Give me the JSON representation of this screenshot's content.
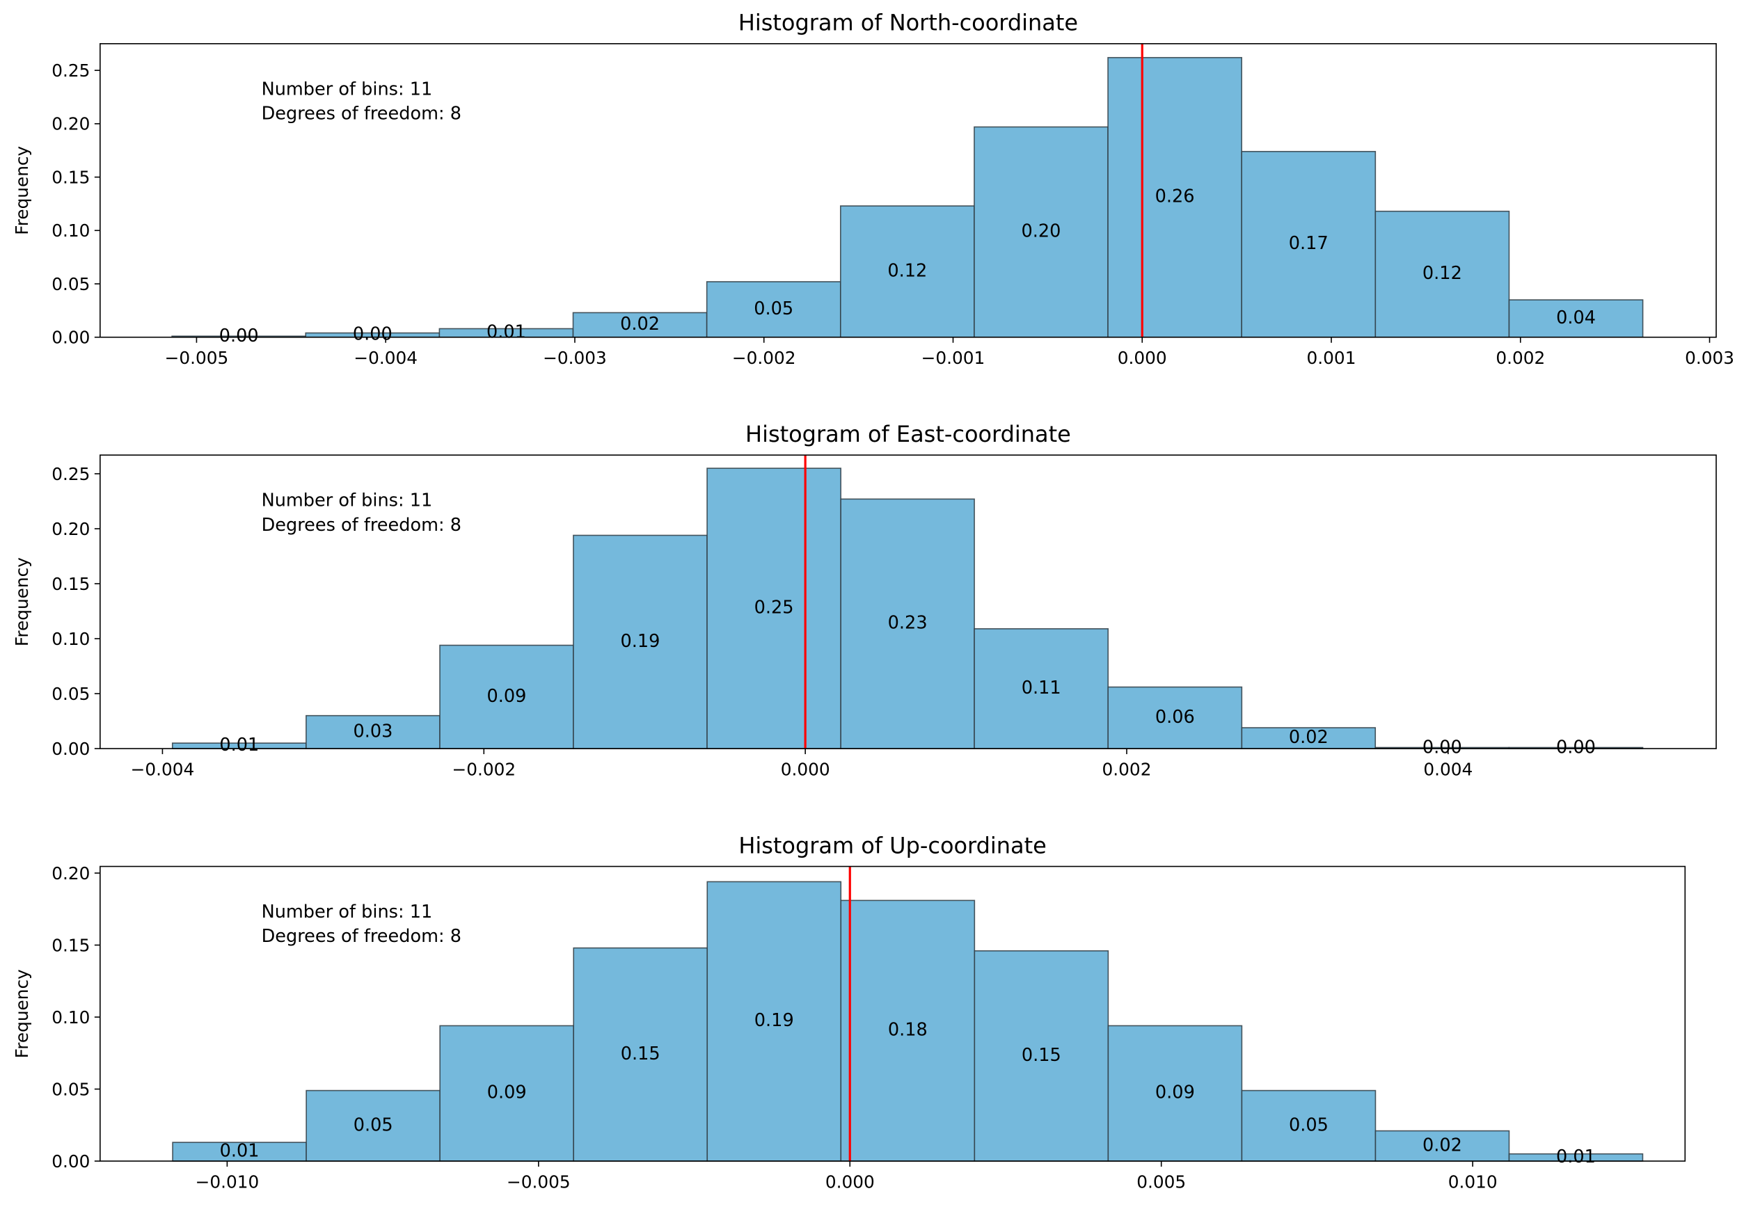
{
  "chart_data": [
    {
      "type": "bar",
      "title": "Histogram of North-coordinate",
      "xlabel": "",
      "ylabel": "Frequency",
      "annotation": [
        "Number of bins: 11",
        "Degrees of freedom: 8"
      ],
      "bin_edges": [
        -0.00513,
        -0.004423,
        -0.003716,
        -0.003009,
        -0.002302,
        -0.001595,
        -0.000888,
        -0.000181,
        0.000526,
        0.001233,
        0.00194,
        0.002647
      ],
      "values": [
        0.001,
        0.004,
        0.008,
        0.023,
        0.052,
        0.123,
        0.197,
        0.262,
        0.174,
        0.118,
        0.035
      ],
      "bar_labels": [
        "0.00",
        "0.00",
        "0.01",
        "0.02",
        "0.05",
        "0.12",
        "0.20",
        "0.26",
        "0.17",
        "0.12",
        "0.04"
      ],
      "xlim": [
        -0.00551,
        0.003035
      ],
      "ylim": [
        0,
        0.275
      ],
      "xticks": [
        -0.005,
        -0.004,
        -0.003,
        -0.002,
        -0.001,
        0.0,
        0.001,
        0.002,
        0.003
      ],
      "xtick_labels": [
        "−0.005",
        "−0.004",
        "−0.003",
        "−0.002",
        "−0.001",
        "0.000",
        "0.001",
        "0.002",
        "0.003"
      ],
      "yticks": [
        0,
        0.05,
        0.1,
        0.15,
        0.2,
        0.25
      ],
      "ytick_labels": [
        "0.00",
        "0.05",
        "0.10",
        "0.15",
        "0.20",
        "0.25"
      ],
      "reference_line_x": 0,
      "grid": false,
      "colors": {
        "bar": "#75b9dc",
        "edge": "#2f3b42",
        "reference_line": "#ff0000"
      }
    },
    {
      "type": "bar",
      "title": "Histogram of East-coordinate",
      "xlabel": "",
      "ylabel": "Frequency",
      "annotation": [
        "Number of bins: 11",
        "Degrees of freedom: 8"
      ],
      "bin_edges": [
        -0.003938,
        -0.003106,
        -0.002274,
        -0.001443,
        -0.000611,
        0.000221,
        0.001052,
        0.001884,
        0.002716,
        0.003547,
        0.004379,
        0.005211
      ],
      "values": [
        0.005,
        0.03,
        0.094,
        0.194,
        0.255,
        0.227,
        0.109,
        0.056,
        0.019,
        0.001,
        0.001
      ],
      "bar_labels": [
        "0.01",
        "0.03",
        "0.09",
        "0.19",
        "0.25",
        "0.23",
        "0.11",
        "0.06",
        "0.02",
        "0.00",
        "0.00"
      ],
      "xlim": [
        -0.004388,
        0.005668
      ],
      "ylim": [
        0,
        0.267
      ],
      "xticks": [
        -0.004,
        -0.002,
        0.0,
        0.002,
        0.004
      ],
      "xtick_labels": [
        "−0.004",
        "−0.002",
        "0.000",
        "0.002",
        "0.004"
      ],
      "yticks": [
        0,
        0.05,
        0.1,
        0.15,
        0.2,
        0.25
      ],
      "ytick_labels": [
        "0.00",
        "0.05",
        "0.10",
        "0.15",
        "0.20",
        "0.25"
      ],
      "reference_line_x": 0,
      "grid": false,
      "colors": {
        "bar": "#75b9dc",
        "edge": "#2f3b42",
        "reference_line": "#ff0000"
      }
    },
    {
      "type": "bar",
      "title": "Histogram of Up-coordinate",
      "xlabel": "",
      "ylabel": "Frequency",
      "annotation": [
        "Number of bins: 11",
        "Degrees of freedom: 8"
      ],
      "bin_edges": [
        -0.010875,
        -0.008729,
        -0.006583,
        -0.004437,
        -0.002291,
        -0.000145,
        0.002001,
        0.004147,
        0.006293,
        0.008439,
        0.010585,
        0.01273
      ],
      "values": [
        0.013,
        0.049,
        0.094,
        0.148,
        0.194,
        0.181,
        0.146,
        0.094,
        0.049,
        0.021,
        0.005
      ],
      "bar_labels": [
        "0.01",
        "0.05",
        "0.09",
        "0.15",
        "0.19",
        "0.18",
        "0.15",
        "0.09",
        "0.05",
        "0.02",
        "0.01"
      ],
      "xlim": [
        -0.01204,
        0.01341
      ],
      "ylim": [
        0,
        0.2046
      ],
      "xticks": [
        -0.01,
        -0.005,
        0.0,
        0.005,
        0.01
      ],
      "xtick_labels": [
        "−0.010",
        "−0.005",
        "0.000",
        "0.005",
        "0.010"
      ],
      "yticks": [
        0,
        0.05,
        0.1,
        0.15,
        0.2
      ],
      "ytick_labels": [
        "0.00",
        "0.05",
        "0.10",
        "0.15",
        "0.20"
      ],
      "reference_line_x": 0,
      "grid": false,
      "colors": {
        "bar": "#75b9dc",
        "edge": "#2f3b42",
        "reference_line": "#ff0000"
      }
    }
  ]
}
